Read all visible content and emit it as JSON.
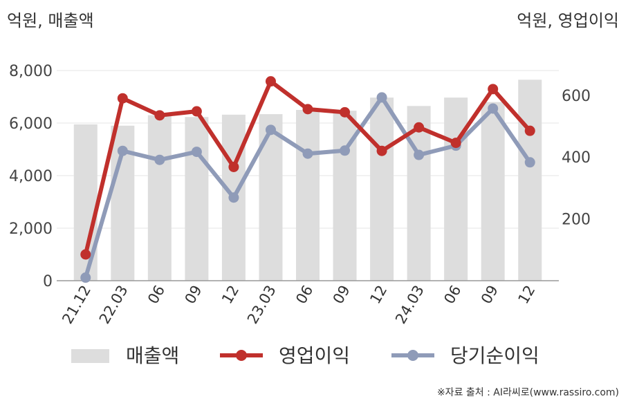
{
  "chart_data": {
    "type": "bar+line",
    "left_unit_label": "억원, 매출액",
    "right_unit_label": "억원, 영업이익",
    "categories": [
      "21.12",
      "22.03",
      "06",
      "09",
      "12",
      "23.03",
      "06",
      "09",
      "12",
      "24.03",
      "06",
      "09",
      "12"
    ],
    "y_left": {
      "min": 0,
      "max": 8000,
      "ticks": [
        "0",
        "2,000",
        "4,000",
        "6,000",
        "8,000"
      ]
    },
    "y_right": {
      "min": 0,
      "max": 680,
      "ticks": [
        "200",
        "400",
        "600"
      ]
    },
    "series": [
      {
        "name": "매출액",
        "type": "bar",
        "axis": "left",
        "color": "#dddddd",
        "values": [
          5950,
          5900,
          6300,
          6230,
          6320,
          6340,
          6500,
          6470,
          6970,
          6650,
          6970,
          6800,
          7650
        ]
      },
      {
        "name": "영업이익",
        "type": "line",
        "axis": "right",
        "color": "#c0302c",
        "values": [
          85,
          590,
          535,
          548,
          368,
          645,
          555,
          545,
          420,
          496,
          446,
          620,
          485
        ]
      },
      {
        "name": "당기순이익",
        "type": "line",
        "axis": "right",
        "color": "#8f9bb8",
        "values": [
          10,
          420,
          391,
          417,
          269,
          488,
          411,
          421,
          593,
          407,
          437,
          557,
          383
        ]
      }
    ],
    "grid": true,
    "legend_position": "bottom",
    "source": "※자료 출처 : AI라씨로(www.rassiro.com)"
  }
}
